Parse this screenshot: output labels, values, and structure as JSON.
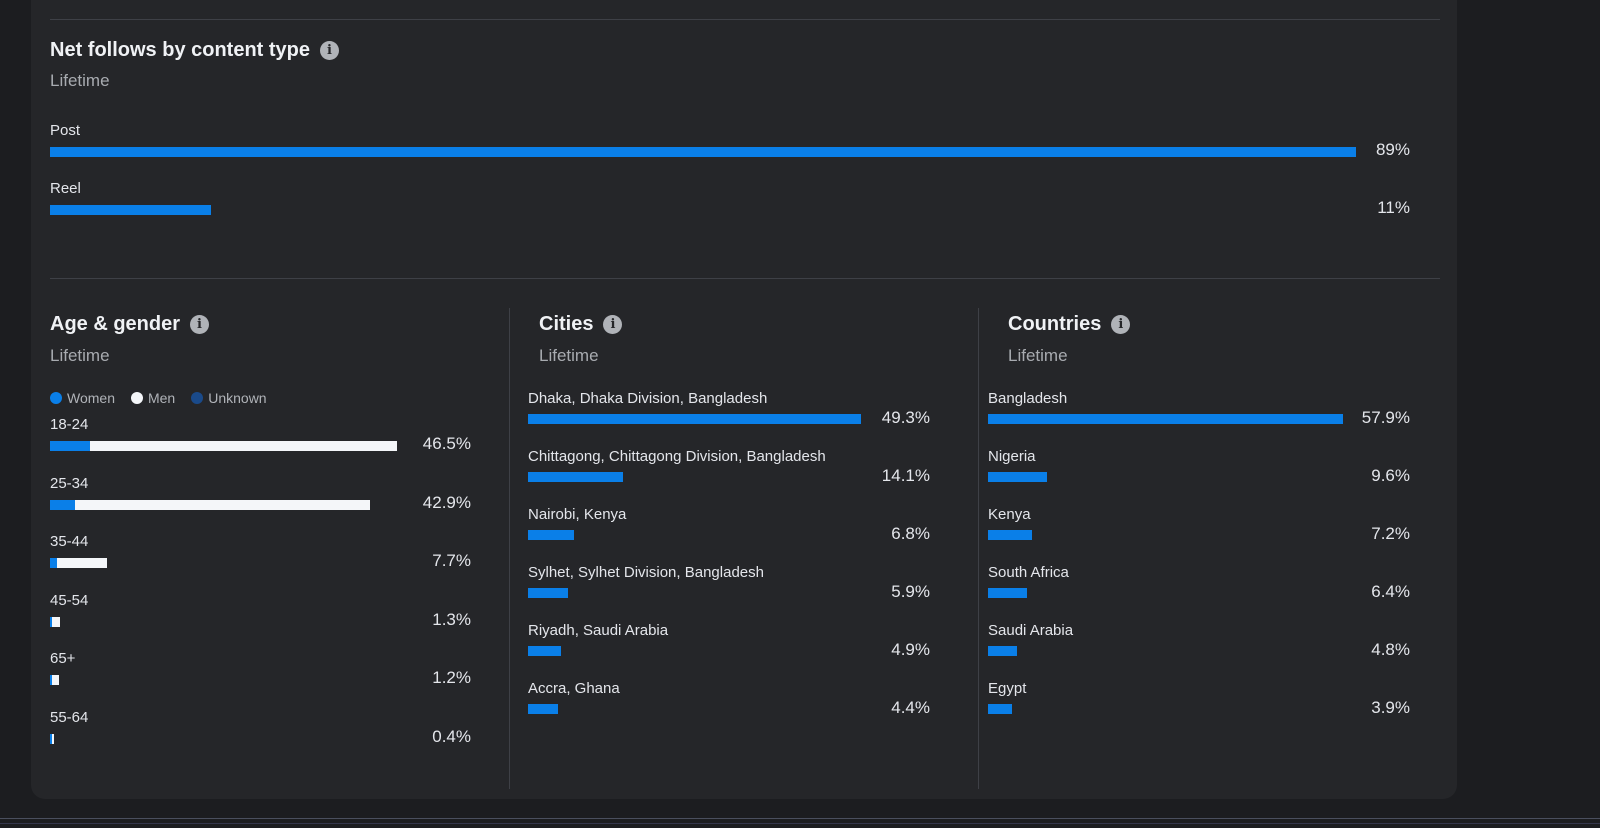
{
  "content_type": {
    "title": "Net follows by content type",
    "subtitle": "Lifetime",
    "rows": [
      {
        "label": "Post",
        "value": 89,
        "pct": "89%"
      },
      {
        "label": "Reel",
        "value": 11,
        "pct": "11%"
      }
    ]
  },
  "age_gender": {
    "title": "Age & gender",
    "subtitle": "Lifetime",
    "legend": [
      {
        "label": "Women",
        "color": "#0a7fe8"
      },
      {
        "label": "Men",
        "color": "#f4f6f9"
      },
      {
        "label": "Unknown",
        "color": "#1a4a8a"
      }
    ],
    "rows": [
      {
        "label": "18-24",
        "pct": "46.5%",
        "women": 5.4,
        "men": 41.1
      },
      {
        "label": "25-34",
        "pct": "42.9%",
        "women": 3.4,
        "men": 39.5
      },
      {
        "label": "35-44",
        "pct": "7.7%",
        "women": 0.9,
        "men": 6.8
      },
      {
        "label": "45-54",
        "pct": "1.3%",
        "women": 0.3,
        "men": 1.0
      },
      {
        "label": "65+",
        "pct": "1.2%",
        "women": 0.2,
        "men": 1.0
      },
      {
        "label": "55-64",
        "pct": "0.4%",
        "women": 0.2,
        "men": 0.2
      }
    ]
  },
  "cities": {
    "title": "Cities",
    "subtitle": "Lifetime",
    "rows": [
      {
        "label": "Dhaka, Dhaka Division, Bangladesh",
        "value": 49.3,
        "pct": "49.3%"
      },
      {
        "label": "Chittagong, Chittagong Division, Bangladesh",
        "value": 14.1,
        "pct": "14.1%"
      },
      {
        "label": "Nairobi, Kenya",
        "value": 6.8,
        "pct": "6.8%"
      },
      {
        "label": "Sylhet, Sylhet Division, Bangladesh",
        "value": 5.9,
        "pct": "5.9%"
      },
      {
        "label": "Riyadh, Saudi Arabia",
        "value": 4.9,
        "pct": "4.9%"
      },
      {
        "label": "Accra, Ghana",
        "value": 4.4,
        "pct": "4.4%"
      }
    ]
  },
  "countries": {
    "title": "Countries",
    "subtitle": "Lifetime",
    "rows": [
      {
        "label": "Bangladesh",
        "value": 57.9,
        "pct": "57.9%"
      },
      {
        "label": "Nigeria",
        "value": 9.6,
        "pct": "9.6%"
      },
      {
        "label": "Kenya",
        "value": 7.2,
        "pct": "7.2%"
      },
      {
        "label": "South Africa",
        "value": 6.4,
        "pct": "6.4%"
      },
      {
        "label": "Saudi Arabia",
        "value": 4.8,
        "pct": "4.8%"
      },
      {
        "label": "Egypt",
        "value": 3.9,
        "pct": "3.9%"
      }
    ]
  },
  "info_icon": "info-icon"
}
